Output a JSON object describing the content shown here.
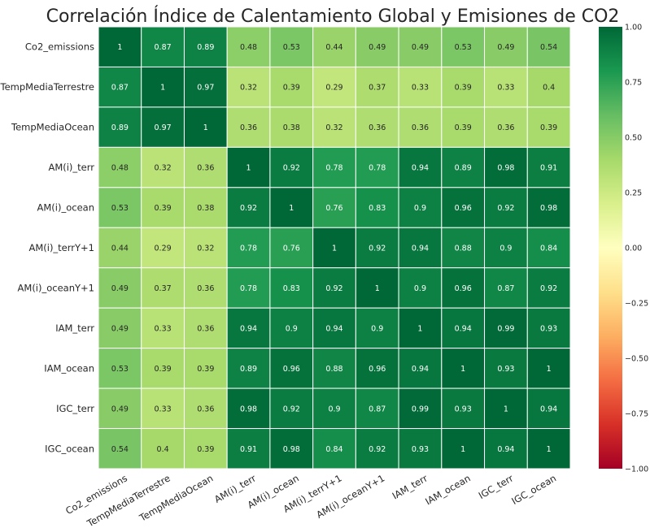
{
  "chart_data": {
    "type": "heatmap",
    "title": "Correlación Índice de Calentamiento Global y Emisiones de CO2",
    "row_labels": [
      "Co2_emissions",
      "TempMediaTerrestre",
      "TempMediaOcean",
      "AM(i)_terr",
      "AM(i)_ocean",
      "AM(i)_terrY+1",
      "AM(i)_oceanY+1",
      "IAM_terr",
      "IAM_ocean",
      "IGC_terr",
      "IGC_ocean"
    ],
    "col_labels": [
      "Co2_emissions",
      "TempMediaTerrestre",
      "TempMediaOcean",
      "AM(i)_terr",
      "AM(i)_ocean",
      "AM(i)_terrY+1",
      "AM(i)_oceanY+1",
      "IAM_terr",
      "IAM_ocean",
      "IGC_terr",
      "IGC_ocean"
    ],
    "values": [
      [
        1,
        0.87,
        0.89,
        0.48,
        0.53,
        0.44,
        0.49,
        0.49,
        0.53,
        0.49,
        0.54
      ],
      [
        0.87,
        1,
        0.97,
        0.32,
        0.39,
        0.29,
        0.37,
        0.33,
        0.39,
        0.33,
        0.4
      ],
      [
        0.89,
        0.97,
        1,
        0.36,
        0.38,
        0.32,
        0.36,
        0.36,
        0.39,
        0.36,
        0.39
      ],
      [
        0.48,
        0.32,
        0.36,
        1,
        0.92,
        0.78,
        0.78,
        0.94,
        0.89,
        0.98,
        0.91
      ],
      [
        0.53,
        0.39,
        0.38,
        0.92,
        1,
        0.76,
        0.83,
        0.9,
        0.96,
        0.92,
        0.98
      ],
      [
        0.44,
        0.29,
        0.32,
        0.78,
        0.76,
        1,
        0.92,
        0.94,
        0.88,
        0.9,
        0.84
      ],
      [
        0.49,
        0.37,
        0.36,
        0.78,
        0.83,
        0.92,
        1,
        0.9,
        0.96,
        0.87,
        0.92
      ],
      [
        0.49,
        0.33,
        0.36,
        0.94,
        0.9,
        0.94,
        0.9,
        1,
        0.94,
        0.99,
        0.93
      ],
      [
        0.53,
        0.39,
        0.39,
        0.89,
        0.96,
        0.88,
        0.96,
        0.94,
        1,
        0.93,
        1
      ],
      [
        0.49,
        0.33,
        0.36,
        0.98,
        0.92,
        0.9,
        0.87,
        0.99,
        0.93,
        1,
        0.94
      ],
      [
        0.54,
        0.4,
        0.39,
        0.91,
        0.98,
        0.84,
        0.92,
        0.93,
        1,
        0.94,
        1
      ]
    ],
    "colorbar": {
      "range": [
        -1,
        1
      ],
      "colormap": "RdYlGn",
      "ticks": [
        "1.00",
        "0.75",
        "0.50",
        "0.25",
        "0.00",
        "−0.25",
        "−0.50",
        "−0.75",
        "−1.00"
      ]
    },
    "legend": "right"
  }
}
